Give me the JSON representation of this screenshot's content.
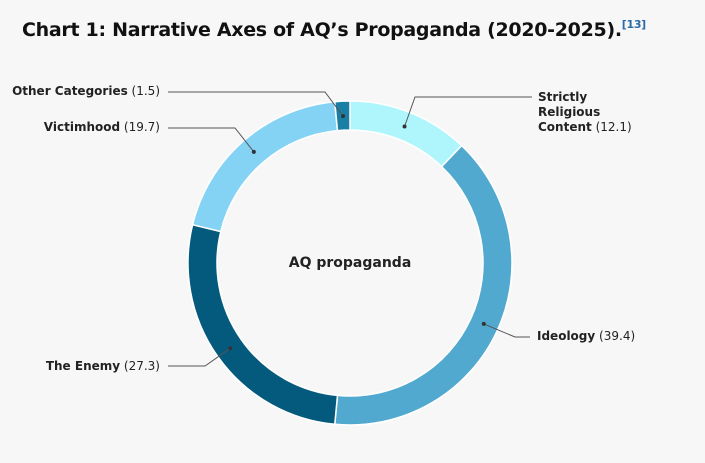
{
  "chart_data": {
    "type": "donut",
    "title": "Chart 1: Narrative Axes of AQ’s Propaganda (2020-2025).",
    "footnote": "[13]",
    "center_label": "AQ propaganda",
    "categories": [
      "Strictly Religious Content",
      "Ideology",
      "The Enemy",
      "Victimhood",
      "Other Categories"
    ],
    "values": [
      12.1,
      39.4,
      27.3,
      19.7,
      1.5
    ],
    "value_labels": [
      "(12.1)",
      "(39.4)",
      "(27.3)",
      "(19.7)",
      "(1.5)"
    ],
    "colors": [
      "#aef6fb",
      "#52a9cf",
      "#035a7d",
      "#84d3f5",
      "#1a7fa5"
    ]
  }
}
